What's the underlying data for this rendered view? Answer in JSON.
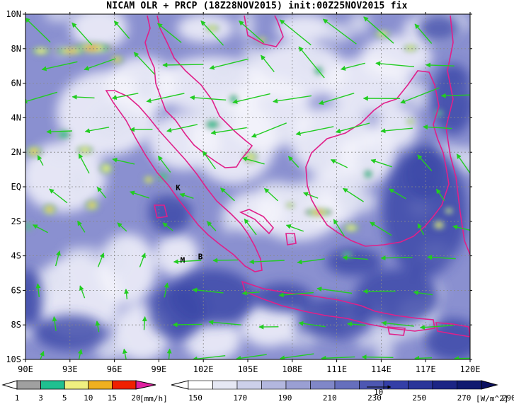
{
  "title": "NICAM OLR + PRCP (18Z28NOV2015) init:00Z25NOV2015 fix",
  "lon_ticks": [
    "90E",
    "93E",
    "96E",
    "99E",
    "102E",
    "105E",
    "108E",
    "111E",
    "114E",
    "117E",
    "120E"
  ],
  "lat_ticks": [
    "10N",
    "8N",
    "6N",
    "4N",
    "2N",
    "EQ",
    "2S",
    "4S",
    "6S",
    "8S",
    "10S"
  ],
  "map_labels": [
    {
      "id": "K",
      "text": "K",
      "lon": 100.3,
      "lat": -0.2
    },
    {
      "id": "M",
      "text": "M",
      "lon": 100.6,
      "lat": -4.4
    },
    {
      "id": "B",
      "text": "B",
      "lon": 101.8,
      "lat": -4.2
    }
  ],
  "precip_colorbar": {
    "labels": [
      "1",
      "3",
      "5",
      "10",
      "15",
      "20"
    ],
    "unit": "[mm/h]",
    "colors": [
      "#a0a0a0",
      "#20c090",
      "#f0f080",
      "#f0b020",
      "#f02000",
      "#e020a0"
    ]
  },
  "olr_colorbar": {
    "labels": [
      "150",
      "170",
      "190",
      "210",
      "230",
      "250",
      "270",
      "290"
    ],
    "unit": "[W/m^2]",
    "colors": [
      "#ffffff",
      "#e6e8f4",
      "#cdd0ea",
      "#b3b7de",
      "#9a9fd3",
      "#8087c8",
      "#666fbd",
      "#4d57b2",
      "#343fa7",
      "#2a3599",
      "#1c2585",
      "#101a70"
    ]
  },
  "vector_legend": {
    "value": "10"
  },
  "colors": {
    "coastline": "#e0208a",
    "wind_vector": "#22cc22",
    "olr_deep": "#2a3799",
    "olr_mid": "#8a90d0"
  }
}
